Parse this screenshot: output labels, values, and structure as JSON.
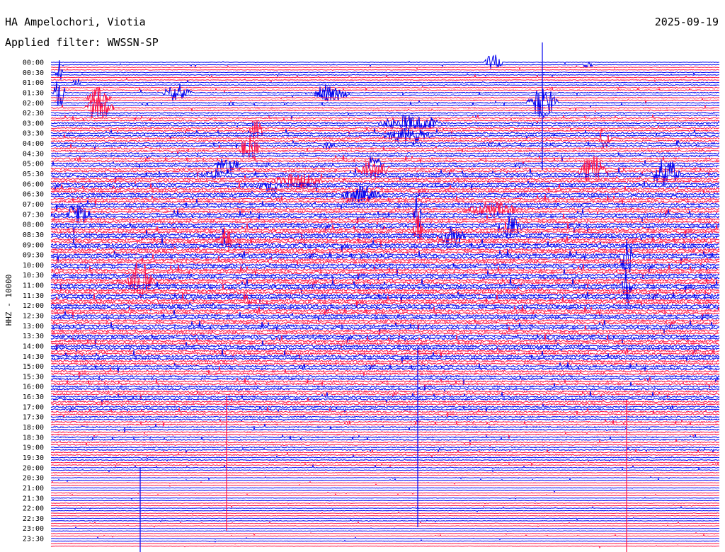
{
  "header": {
    "station": "HA Ampelochori, Viotia",
    "filter_label": "Applied filter: WWSSN-SP",
    "date": "2025-09-19"
  },
  "chart_data": {
    "type": "helicorder",
    "title": "HA Ampelochori, Viotia",
    "ylabel": "HHZ - 10000",
    "tick_labels": [
      "00:00",
      "00:30",
      "01:00",
      "01:30",
      "02:00",
      "02:30",
      "03:00",
      "03:30",
      "04:00",
      "04:30",
      "05:00",
      "05:30",
      "06:00",
      "06:30",
      "07:00",
      "07:30",
      "08:00",
      "08:30",
      "09:00",
      "09:30",
      "10:00",
      "10:30",
      "11:00",
      "11:30",
      "12:00",
      "12:30",
      "13:00",
      "13:30",
      "14:00",
      "14:30",
      "15:00",
      "15:30",
      "16:00",
      "16:30",
      "17:00",
      "17:30",
      "18:00",
      "18:30",
      "19:00",
      "19:30",
      "20:00",
      "20:30",
      "21:00",
      "21:30",
      "22:00",
      "22:30",
      "23:00",
      "23:30"
    ],
    "series_colors": [
      "#0000ee",
      "#ff1144"
    ],
    "grid": false,
    "legend": "none"
  }
}
